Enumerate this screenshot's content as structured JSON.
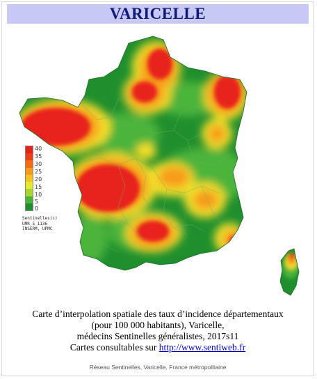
{
  "title": "VARICELLE",
  "legend": {
    "ticks": [
      "40",
      "35",
      "30",
      "25",
      "20",
      "15",
      "10",
      "5",
      "0"
    ],
    "colors": [
      "#e8201a",
      "#ef3d16",
      "#f66a14",
      "#f79b1b",
      "#f6c21f",
      "#e9e82a",
      "#a8d62e",
      "#4bb43a",
      "#1f8f2e"
    ]
  },
  "credit": {
    "line1": "Sentinelles(c)",
    "line2": "UMR S 1136",
    "line3": "INSERM, UPMC"
  },
  "caption": {
    "line1": "Carte d’interpolation spatiale des taux d’incidence départementaux",
    "line2": "(pour 100 000 habitants), Varicelle,",
    "line3": "médecins Sentinelles généralistes, 2017s11",
    "line4_prefix": "Cartes consultables sur ",
    "link": "http://www.sentiweb.fr"
  },
  "footer": "Réseau Sentinelles, Varicelle, France métropolitaine",
  "colors": {
    "base": "#1f8f2e",
    "light_green": "#4bb43a",
    "yellow": "#f1dd2a",
    "orange": "#f79b1b",
    "red": "#e8201a",
    "title_bg": "#c8c8f4",
    "title_text": "#0d1a7a"
  }
}
